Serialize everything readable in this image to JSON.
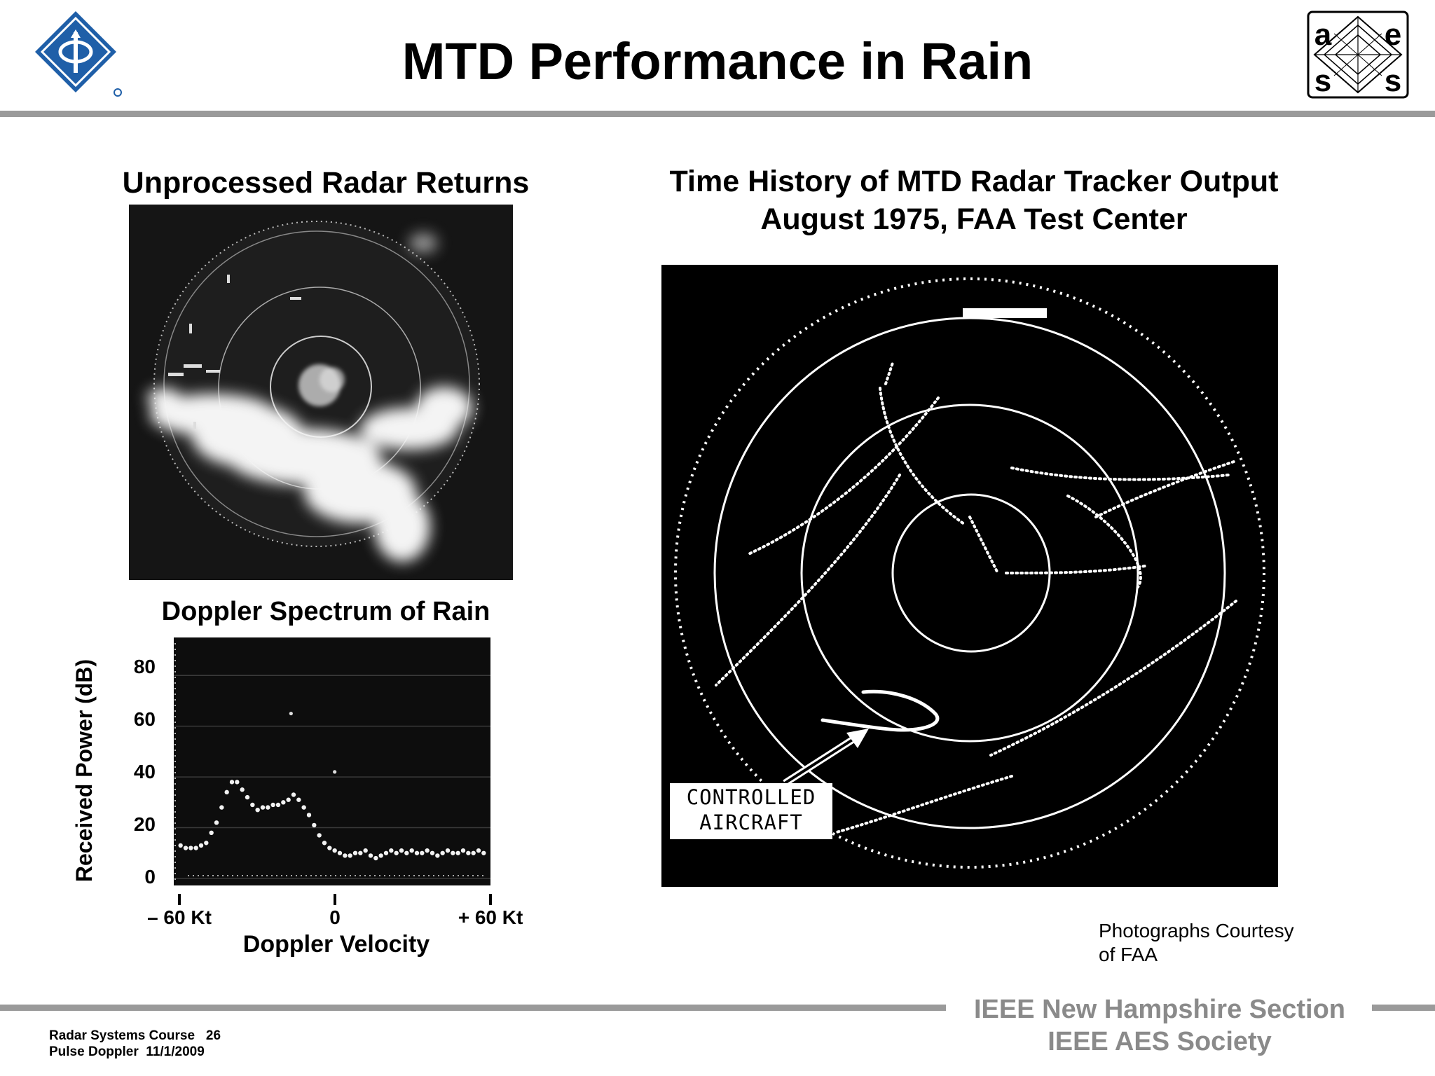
{
  "slide": {
    "title": "MTD Performance in Rain",
    "left_title": "Unprocessed Radar Returns",
    "right_title_line1": "Time History of MTD Radar Tracker Output",
    "right_title_line2": "August 1975,  FAA Test Center",
    "callout_line1": "CONTROLLED",
    "callout_line2": "AIRCRAFT",
    "courtesy_line1": "Photographs Courtesy",
    "courtesy_line2": "of FAA",
    "aes_letters": [
      "a",
      "e",
      "s",
      "s"
    ]
  },
  "chart_data": {
    "type": "scatter",
    "title": "Doppler Spectrum of Rain",
    "xlabel": "Doppler Velocity",
    "ylabel": "Received Power (dB)",
    "xlim": [
      -60,
      60
    ],
    "ylim": [
      0,
      90
    ],
    "ytick_labels": [
      "80",
      "60",
      "40",
      "20",
      "0"
    ],
    "yticks": [
      80,
      60,
      40,
      20,
      0
    ],
    "xtick_labels": [
      "– 60 Kt",
      "0",
      "+ 60 Kt"
    ],
    "xticks": [
      -60,
      0,
      60
    ],
    "grid": true,
    "series": [
      {
        "x": [
          -59,
          -57,
          -55,
          -53,
          -51,
          -49,
          -47,
          -45,
          -43,
          -41,
          -39,
          -37,
          -35,
          -33,
          -31,
          -29,
          -27,
          -25,
          -23,
          -21,
          -19,
          -17,
          -15,
          -13,
          -11,
          -9,
          -7,
          -5,
          -3,
          -1,
          1,
          3,
          5,
          7,
          9,
          11,
          13,
          15,
          17,
          19,
          21,
          23,
          25,
          27,
          29,
          31,
          33,
          35,
          37,
          39,
          41,
          43,
          45,
          47,
          49,
          51,
          53,
          55,
          57,
          59
        ],
        "y": [
          13,
          12,
          12,
          12,
          13,
          14,
          18,
          22,
          28,
          34,
          38,
          38,
          35,
          32,
          29,
          27,
          28,
          28,
          29,
          29,
          30,
          31,
          33,
          31,
          28,
          25,
          21,
          17,
          14,
          12,
          11,
          10,
          9,
          9,
          10,
          10,
          11,
          9,
          8,
          9,
          10,
          11,
          10,
          11,
          10,
          11,
          10,
          10,
          11,
          10,
          9,
          10,
          11,
          10,
          10,
          11,
          10,
          10,
          11,
          10
        ]
      }
    ],
    "outliers": [
      {
        "x": -16,
        "y": 65
      },
      {
        "x": 1,
        "y": 42
      }
    ]
  },
  "footer": {
    "org_line1": "IEEE New Hampshire Section",
    "org_line2": "IEEE AES Society",
    "course": "Radar Systems Course   26",
    "course_sub": "Pulse Doppler  11/1/2009"
  }
}
